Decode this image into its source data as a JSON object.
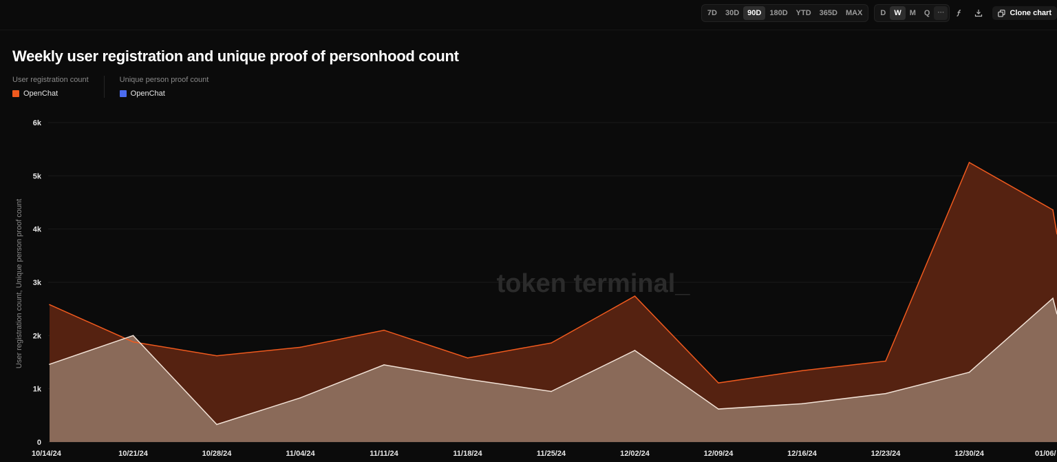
{
  "toolbar": {
    "ranges": [
      "7D",
      "30D",
      "90D",
      "180D",
      "YTD",
      "365D",
      "MAX"
    ],
    "active_range": "90D",
    "granularity": [
      "D",
      "W",
      "M",
      "Q"
    ],
    "active_granularity": "W",
    "more_label": "···",
    "formula_icon": "formula-icon",
    "download_icon": "download-icon",
    "clone_label": "Clone chart",
    "clone_icon": "clone-icon"
  },
  "legend": {
    "groups": [
      {
        "title": "User registration count",
        "item": "OpenChat",
        "color": "#f05a1e"
      },
      {
        "title": "Unique person proof count",
        "item": "OpenChat",
        "color": "#4b6cf0"
      }
    ]
  },
  "watermark": "token terminal_",
  "chart_data": {
    "type": "area",
    "title": "Weekly user registration and unique proof of personhood count",
    "ylabel": "User registration count, Unique person proof count",
    "xlabel": "",
    "x": [
      "10/14/24",
      "10/21/24",
      "10/28/24",
      "11/04/24",
      "11/11/24",
      "11/18/24",
      "11/25/24",
      "12/02/24",
      "12/09/24",
      "12/16/24",
      "12/23/24",
      "12/30/24",
      "01/06/"
    ],
    "series": [
      {
        "name": "User registration count",
        "color": "#f05a1e",
        "fill": "#552211",
        "values": [
          2580,
          1880,
          1620,
          1780,
          2100,
          1580,
          1860,
          2740,
          1110,
          1340,
          1520,
          5250,
          4360
        ]
      },
      {
        "name": "Unique person proof count",
        "color": "#f2e2d6",
        "fill": "#8a6a59",
        "values": [
          1460,
          2000,
          330,
          830,
          1450,
          1180,
          950,
          1720,
          620,
          720,
          910,
          1310,
          2700
        ]
      }
    ],
    "tail": {
      "registration": 3900,
      "proof": 2400
    },
    "ylim": [
      0,
      6000
    ],
    "yticks": [
      0,
      1000,
      2000,
      3000,
      4000,
      5000,
      6000
    ],
    "ytick_labels": [
      "0",
      "1k",
      "2k",
      "3k",
      "4k",
      "5k",
      "6k"
    ],
    "grid": true,
    "legend_position": "top-left"
  }
}
